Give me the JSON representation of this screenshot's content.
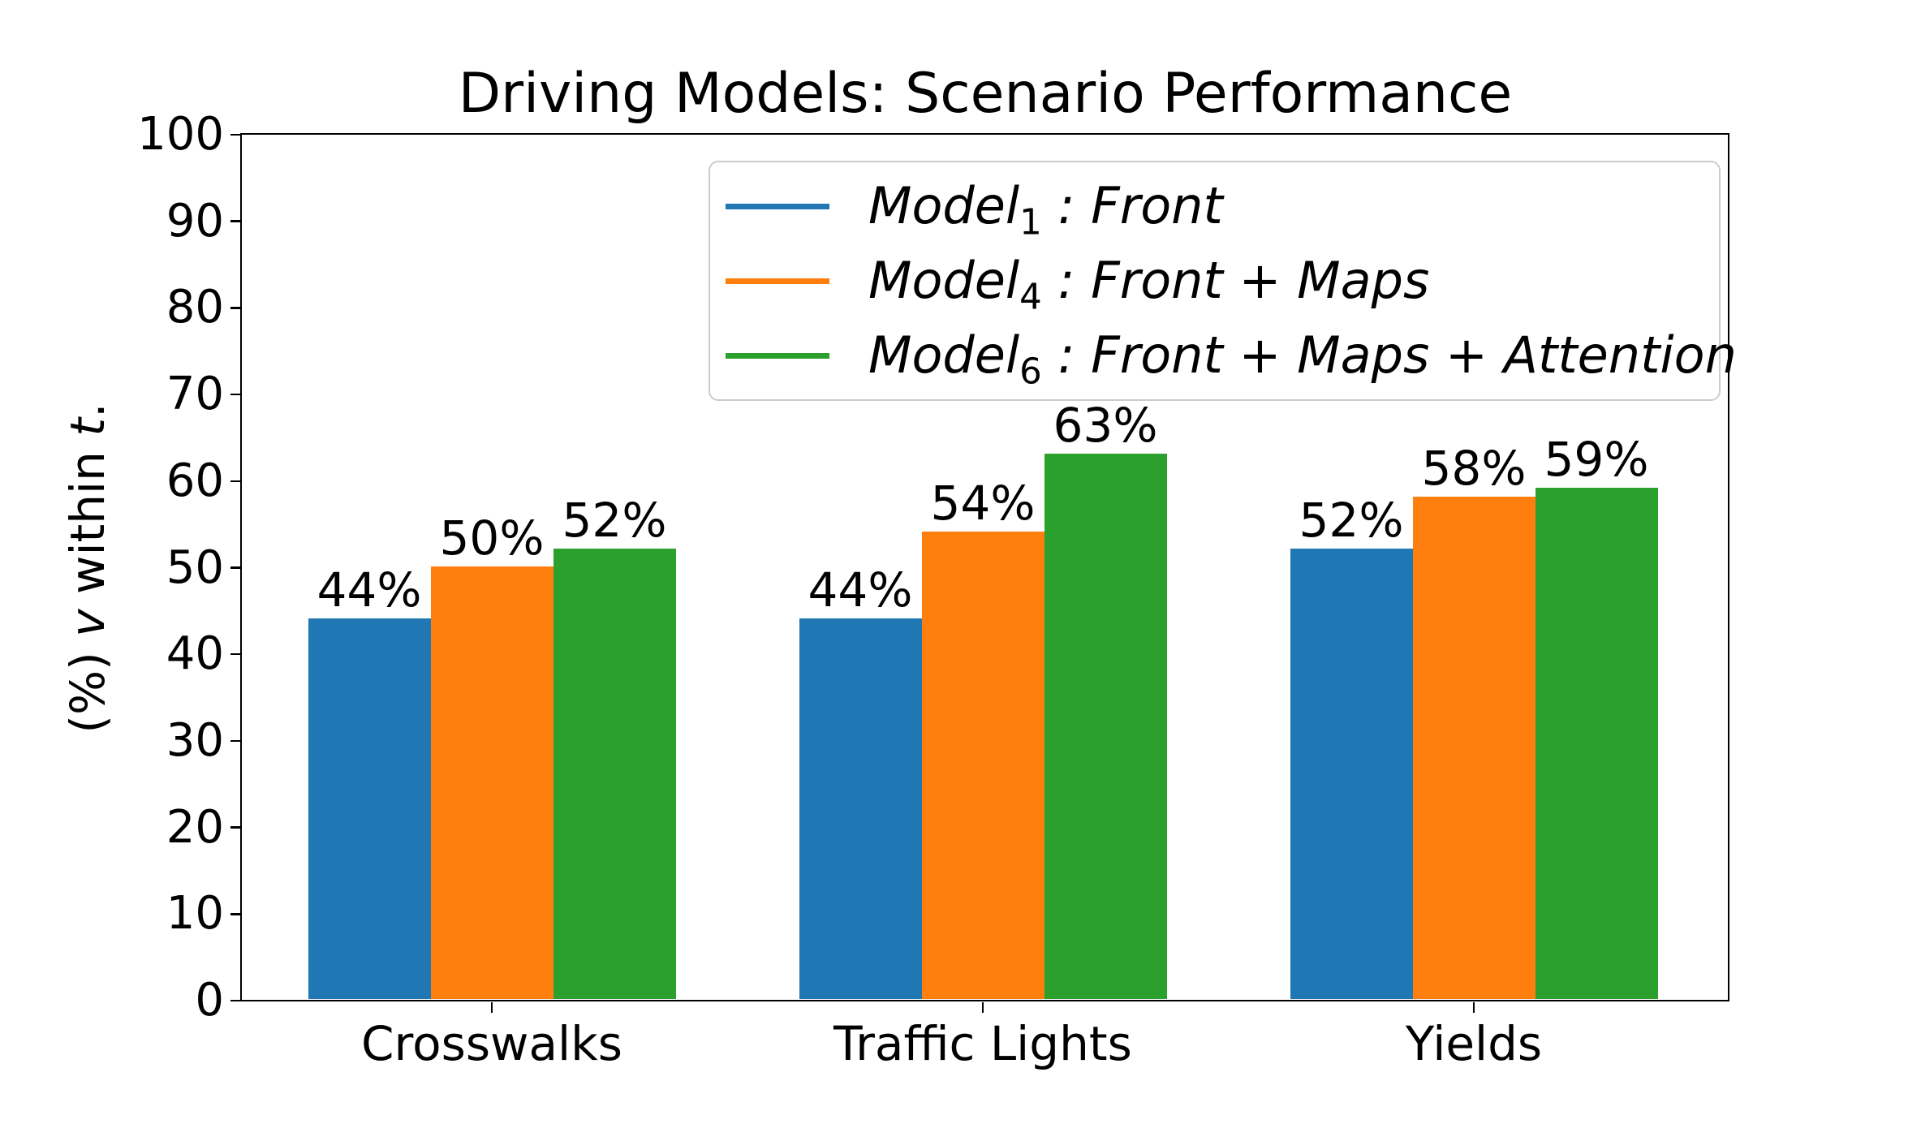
{
  "chart_data": {
    "type": "bar",
    "title": "Driving Models: Scenario Performance",
    "ylabel": "(%) v within t.",
    "ylabel_segments": [
      {
        "text": "(%) ",
        "italic": false
      },
      {
        "text": "v",
        "italic": true
      },
      {
        "text": " within ",
        "italic": false
      },
      {
        "text": "t",
        "italic": true
      },
      {
        "text": ".",
        "italic": false
      }
    ],
    "categories": [
      "Crosswalks",
      "Traffic Lights",
      "Yields"
    ],
    "series": [
      {
        "key": "model1",
        "label_prefix": "Model",
        "label_sub": "1",
        "label_rest": " : Front",
        "color": "#1f77b4",
        "values": [
          44,
          44,
          52
        ],
        "value_labels": [
          "44%",
          "44%",
          "52%"
        ]
      },
      {
        "key": "model4",
        "label_prefix": "Model",
        "label_sub": "4",
        "label_rest": " : Front + Maps",
        "color": "#ff7f0e",
        "values": [
          50,
          54,
          58
        ],
        "value_labels": [
          "50%",
          "54%",
          "58%"
        ]
      },
      {
        "key": "model6",
        "label_prefix": "Model",
        "label_sub": "6",
        "label_rest": " : Front + Maps + Attention",
        "color": "#2ca02c",
        "values": [
          52,
          63,
          59
        ],
        "value_labels": [
          "52%",
          "63%",
          "59%"
        ]
      }
    ],
    "ylim": [
      0,
      100
    ],
    "yticks": [
      0,
      10,
      20,
      30,
      40,
      50,
      60,
      70,
      80,
      90,
      100
    ],
    "grid": false,
    "legend_position": "upper right inside",
    "axis_color": "#000000",
    "legend_border_color": "#cccccc",
    "background_color": "#ffffff"
  }
}
